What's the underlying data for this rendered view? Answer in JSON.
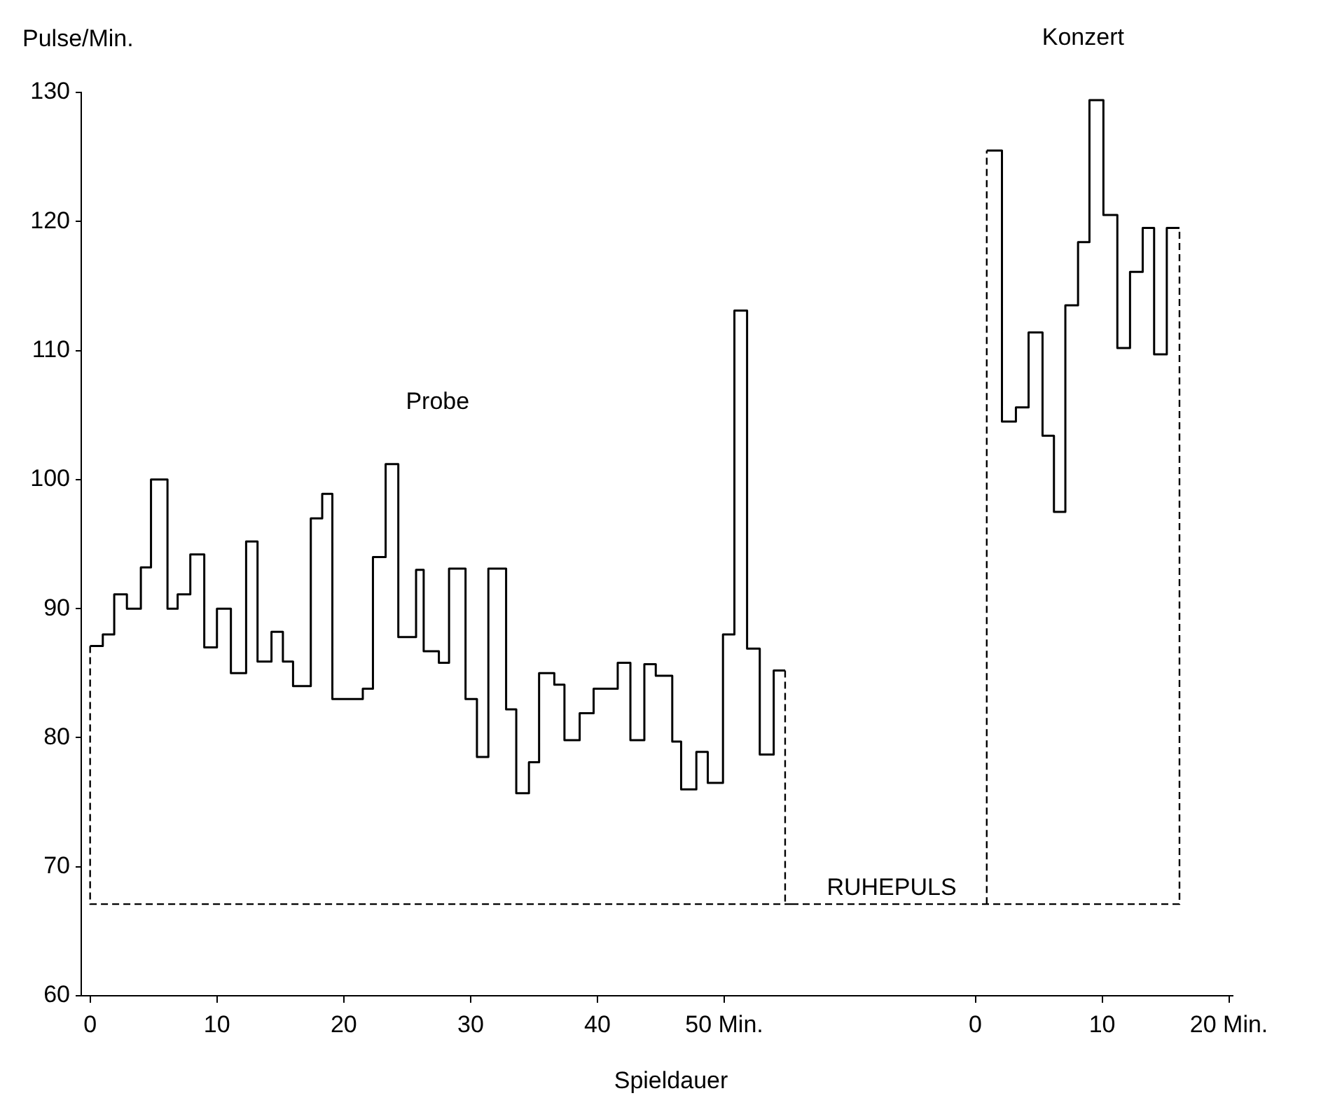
{
  "chart_data": [
    {
      "type": "step",
      "xlabel": "Spieldauer",
      "ylabel": "Pulse/Min.",
      "xlim": [
        -0.7,
        55.3
      ],
      "xticks": [
        0,
        10,
        20,
        30,
        40,
        {
          "value": 50,
          "label": "50 Min."
        }
      ],
      "ylim": [
        60,
        130
      ],
      "yticks": [
        60,
        70,
        80,
        90,
        100,
        110,
        120,
        130
      ],
      "series": [
        {
          "name": "Probe",
          "color": "#000000",
          "x": [
            0,
            1,
            1.9,
            2.9,
            4.0,
            4.8,
            6.1,
            6.9,
            7.9,
            9.0,
            10.0,
            11.1,
            12.3,
            13.2,
            14.3,
            15.2,
            16.0,
            17.4,
            18.3,
            19.1,
            21.5,
            22.3,
            23.3,
            24.3,
            25.7,
            26.3,
            27.5,
            28.3,
            29.6,
            30.5,
            31.4,
            32.8,
            33.6,
            34.6,
            35.4,
            36.6,
            37.4,
            38.6,
            39.7,
            41.6,
            42.6,
            43.7,
            44.6,
            45.9,
            46.6,
            47.8,
            48.7,
            49.9,
            50.8,
            51.8,
            52.8,
            53.9,
            54.8
          ],
          "values": [
            87.1,
            88.0,
            91.1,
            90.0,
            93.2,
            100.0,
            90.0,
            91.1,
            94.2,
            87.0,
            90.0,
            85.0,
            95.2,
            85.9,
            88.2,
            85.9,
            84.0,
            97.0,
            98.9,
            83.0,
            83.8,
            94.0,
            101.2,
            87.8,
            93.0,
            86.7,
            85.8,
            93.1,
            83.0,
            78.5,
            93.1,
            82.2,
            75.7,
            78.1,
            85.0,
            84.1,
            79.8,
            81.9,
            83.8,
            85.8,
            79.8,
            85.7,
            84.8,
            79.7,
            76.0,
            78.9,
            76.5,
            88.0,
            113.1,
            86.9,
            78.7,
            85.2,
            85.2
          ]
        },
        {
          "type": "line",
          "line_style": "dashed",
          "color": "#000000",
          "x": [
            0,
            0,
            55.3
          ],
          "values": [
            87.1,
            67.1,
            67.1
          ]
        },
        {
          "type": "line",
          "line_style": "dashed",
          "color": "#000000",
          "x": [
            54.8,
            54.8
          ],
          "values": [
            85.2,
            67.1
          ]
        }
      ]
    },
    {
      "type": "step",
      "tick_labels": "x",
      "xlim": [
        -14.5,
        20.3
      ],
      "xticks": [
        0,
        10,
        {
          "value": 20,
          "label": "20 Min."
        }
      ],
      "ylim": [
        60,
        130
      ],
      "yticks": [
        60,
        70,
        80,
        90,
        100,
        110,
        120,
        130
      ],
      "series": [
        {
          "name": "Konzert",
          "color": "#000000",
          "x": [
            0.9,
            2.1,
            3.2,
            4.2,
            5.3,
            6.2,
            7.1,
            8.1,
            9.0,
            10.1,
            11.2,
            12.2,
            13.2,
            14.1,
            15.1,
            16.1
          ],
          "values": [
            125.5,
            104.5,
            105.6,
            111.4,
            103.4,
            97.5,
            113.5,
            118.4,
            129.4,
            120.5,
            110.2,
            116.1,
            119.5,
            109.7,
            119.5,
            119.5
          ]
        },
        {
          "type": "line",
          "line_style": "dashed",
          "color": "#000000",
          "x": [
            -14.5,
            16.1,
            16.1
          ],
          "values": [
            67.1,
            67.1,
            119.5
          ]
        },
        {
          "type": "line",
          "line_style": "dashed",
          "color": "#000000",
          "x": [
            0.9,
            0.9
          ],
          "values": [
            67.1,
            125.5
          ]
        }
      ],
      "annotations": [
        {
          "text": "RUHEPULS",
          "x": -6.6,
          "y": 67.1
        }
      ]
    }
  ]
}
